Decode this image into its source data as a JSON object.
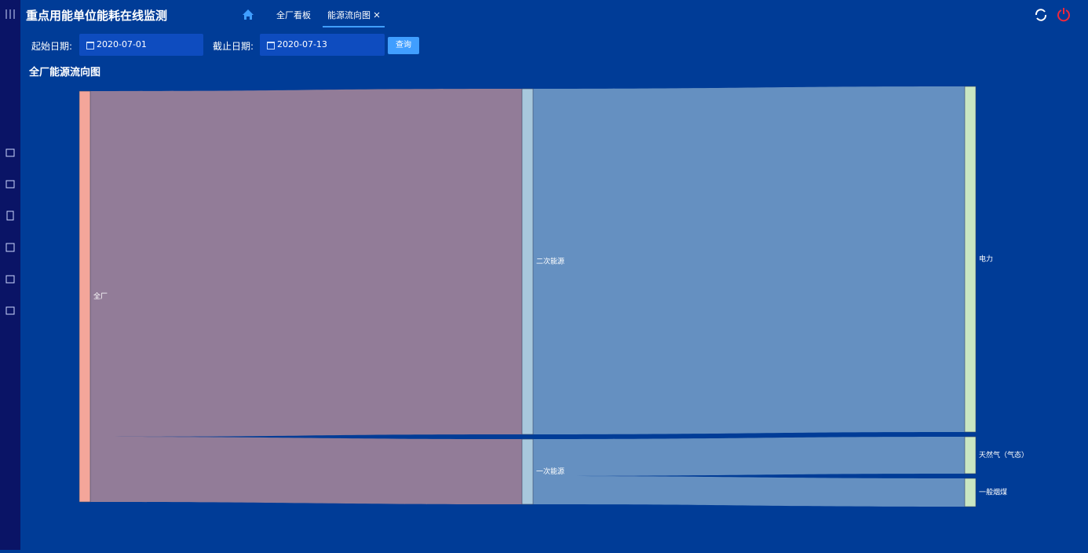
{
  "app": {
    "title": "重点用能单位能耗在线监测",
    "tabs": [
      "全厂看板",
      "能源流向图"
    ],
    "filters": {
      "start_label": "起始日期:",
      "start_date": "2020-07-01",
      "end_label": "截止日期:",
      "end_date": "2020-07-13",
      "query_button": "查询"
    }
  },
  "chart_data": {
    "type": "sankey",
    "title": "全厂能源流向图",
    "nodes": [
      {
        "name": "全厂",
        "color": "#f4a69a"
      },
      {
        "name": "二次能源",
        "color": "#a8c8dd"
      },
      {
        "name": "一次能源",
        "color": "#a8c8dd"
      },
      {
        "name": "电力",
        "color": "#c9e6c2"
      },
      {
        "name": "天然气（气态）",
        "color": "#c9e6c2"
      },
      {
        "name": "一般烟煤",
        "color": "#c9e6c2"
      }
    ],
    "links": [
      {
        "source": "全厂",
        "target": "二次能源",
        "value": 440
      },
      {
        "source": "全厂",
        "target": "一次能源",
        "value": 83
      },
      {
        "source": "二次能源",
        "target": "电力",
        "value": 440
      },
      {
        "source": "一次能源",
        "target": "天然气（气态）",
        "value": 47
      },
      {
        "source": "一次能源",
        "target": "一般烟煤",
        "value": 36
      }
    ]
  }
}
